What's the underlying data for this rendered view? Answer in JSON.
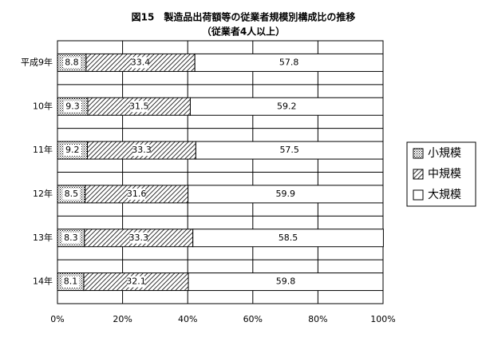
{
  "chart_data": {
    "type": "stacked-barh",
    "title": "図15　製造品出荷額等の従業者規模別構成比の推移",
    "subtitle": "（従業者4人以上）",
    "categories": [
      "平成9年",
      "10年",
      "11年",
      "12年",
      "13年",
      "14年"
    ],
    "series": [
      {
        "name": "小規模",
        "color": "#000000",
        "pattern": "dots",
        "values": [
          8.8,
          9.3,
          9.2,
          8.5,
          8.3,
          8.1
        ]
      },
      {
        "name": "中規模",
        "color": "#000000",
        "pattern": "hatch",
        "values": [
          33.4,
          31.5,
          33.3,
          31.6,
          33.3,
          32.1
        ]
      },
      {
        "name": "大規模",
        "color": "#ffffff",
        "pattern": "none",
        "values": [
          57.8,
          59.2,
          57.5,
          59.9,
          58.5,
          59.8
        ]
      }
    ],
    "xlim": [
      0,
      100
    ],
    "xticks": [
      {
        "value": 0,
        "label": "0%"
      },
      {
        "value": 20,
        "label": "20%"
      },
      {
        "value": 40,
        "label": "40%"
      },
      {
        "value": 60,
        "label": "60%"
      },
      {
        "value": 80,
        "label": "80%"
      },
      {
        "value": 100,
        "label": "100%"
      }
    ],
    "grid": true,
    "legend": "right"
  }
}
